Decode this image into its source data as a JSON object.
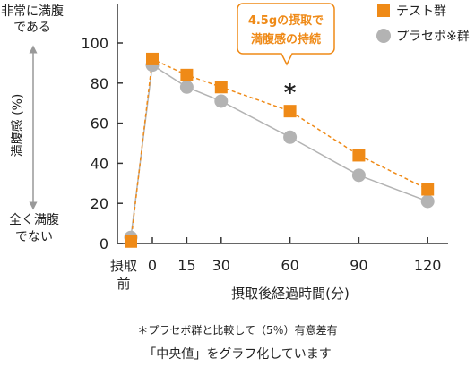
{
  "chart_data": {
    "type": "line",
    "x_tick_labels": [
      "摂取前",
      "0",
      "15",
      "30",
      "60",
      "90",
      "120"
    ],
    "x_values": [
      -10,
      0,
      15,
      30,
      60,
      90,
      120
    ],
    "xlabel": "摂取後経過時間(分)",
    "ylabel": "満腹感 (%)",
    "ylim": [
      0,
      100
    ],
    "y_ticks": [
      0,
      20,
      40,
      60,
      80,
      100
    ],
    "y_top_label": [
      "非常に満腹",
      "である"
    ],
    "y_bottom_label": [
      "全く満腹",
      "でない"
    ],
    "series": [
      {
        "name": "テスト群",
        "color": "#ef8a17",
        "marker": "square",
        "line": "dashed",
        "values": [
          1,
          92,
          84,
          78,
          66,
          44,
          27
        ]
      },
      {
        "name": "プラセボ※群",
        "color": "#b3b3b3",
        "marker": "circle",
        "line": "solid",
        "values": [
          3,
          89,
          78,
          71,
          53,
          34,
          21
        ]
      }
    ],
    "legend_position": "top-right",
    "callout": [
      "4.5gの摂取で",
      "満腹感の持続"
    ],
    "significance_marker": {
      "symbol": "*",
      "x": 60
    },
    "callout_color": "#ef8a17",
    "grid": false
  },
  "footnote": "＊プラセボ群と比較して（5％）有意差有",
  "caption": "「中央値」をグラフ化しています"
}
